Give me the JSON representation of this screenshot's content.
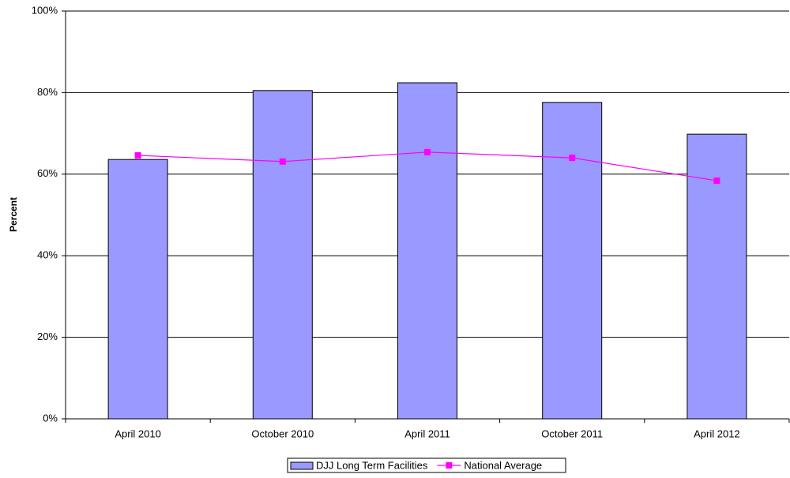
{
  "chart_data": {
    "type": "bar",
    "y_label": "Percent",
    "categories": [
      "April 2010",
      "October 2010",
      "April 2011",
      "October 2011",
      "April 2012"
    ],
    "series": [
      {
        "name": "DJJ Long Term Facilities",
        "type": "bar",
        "color": "#9999ff",
        "values": [
          63.6,
          80.5,
          82.4,
          77.6,
          69.8
        ]
      },
      {
        "name": "National Average",
        "type": "line",
        "color": "#ff00ff",
        "values": [
          64.6,
          63.1,
          65.4,
          64.0,
          58.4
        ]
      }
    ],
    "ylim": [
      0,
      100
    ],
    "yticks": [
      {
        "value": 0,
        "label": "0%"
      },
      {
        "value": 20,
        "label": "20%"
      },
      {
        "value": 40,
        "label": "40%"
      },
      {
        "value": 60,
        "label": "60%"
      },
      {
        "value": 80,
        "label": "80%"
      },
      {
        "value": 100,
        "label": "100%"
      }
    ],
    "grid": true,
    "legend": "bottom"
  }
}
